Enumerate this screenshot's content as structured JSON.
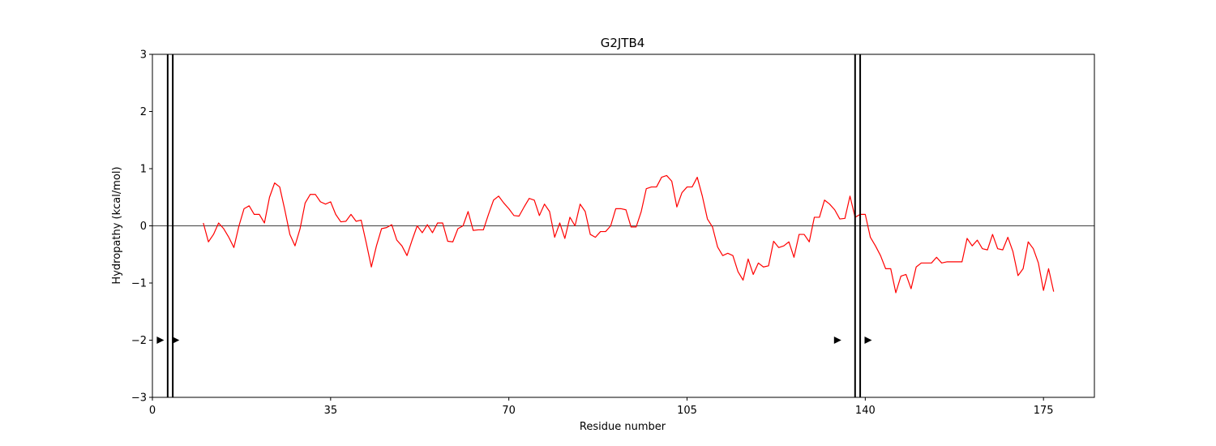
{
  "chart_data": {
    "type": "line",
    "title": "G2JTB4",
    "xlabel": "Residue number",
    "ylabel": "Hydropathy (kcal/mol)",
    "xlim": [
      0,
      185
    ],
    "ylim": [
      -3,
      3
    ],
    "xticks": [
      0,
      35,
      70,
      105,
      140,
      175
    ],
    "yticks": [
      -3,
      -2,
      -1,
      0,
      1,
      2,
      3
    ],
    "grid": false,
    "zero_line": 0,
    "series": [
      {
        "color": "#ff0000",
        "x_start": 10,
        "x_step": 1,
        "values": [
          0.05,
          -0.28,
          -0.15,
          0.05,
          -0.05,
          -0.2,
          -0.38,
          0.0,
          0.3,
          0.35,
          0.2,
          0.2,
          0.05,
          0.5,
          0.75,
          0.68,
          0.28,
          -0.15,
          -0.35,
          -0.05,
          0.4,
          0.55,
          0.55,
          0.42,
          0.38,
          0.42,
          0.2,
          0.07,
          0.08,
          0.2,
          0.08,
          0.1,
          -0.3,
          -0.72,
          -0.35,
          -0.05,
          -0.03,
          0.02,
          -0.25,
          -0.35,
          -0.52,
          -0.25,
          0.0,
          -0.12,
          0.02,
          -0.12,
          0.05,
          0.05,
          -0.27,
          -0.28,
          -0.05,
          0.0,
          0.25,
          -0.08,
          -0.07,
          -0.07,
          0.2,
          0.45,
          0.52,
          0.4,
          0.3,
          0.18,
          0.17,
          0.33,
          0.48,
          0.45,
          0.18,
          0.38,
          0.25,
          -0.2,
          0.05,
          -0.22,
          0.15,
          0.0,
          0.38,
          0.25,
          -0.15,
          -0.2,
          -0.1,
          -0.1,
          0.0,
          0.3,
          0.3,
          0.28,
          -0.02,
          -0.02,
          0.25,
          0.65,
          0.68,
          0.68,
          0.85,
          0.88,
          0.78,
          0.33,
          0.58,
          0.68,
          0.68,
          0.85,
          0.52,
          0.12,
          -0.02,
          -0.37,
          -0.52,
          -0.48,
          -0.52,
          -0.8,
          -0.95,
          -0.58,
          -0.85,
          -0.65,
          -0.72,
          -0.7,
          -0.27,
          -0.38,
          -0.35,
          -0.28,
          -0.55,
          -0.15,
          -0.15,
          -0.28,
          0.15,
          0.15,
          0.45,
          0.38,
          0.28,
          0.12,
          0.13,
          0.52,
          0.15,
          0.2,
          0.2,
          -0.2,
          -0.35,
          -0.52,
          -0.75,
          -0.75,
          -1.17,
          -0.88,
          -0.85,
          -1.1,
          -0.72,
          -0.65,
          -0.65,
          -0.65,
          -0.55,
          -0.65,
          -0.63,
          -0.63,
          -0.63,
          -0.63,
          -0.22,
          -0.35,
          -0.25,
          -0.4,
          -0.42,
          -0.15,
          -0.4,
          -0.42,
          -0.2,
          -0.45,
          -0.87,
          -0.75,
          -0.28,
          -0.4,
          -0.65,
          -1.13,
          -0.75,
          -1.15
        ]
      }
    ],
    "vertical_lines": [
      3,
      4,
      138,
      139
    ],
    "markers": [
      {
        "x": 1.5,
        "y": -2,
        "shape": "triangle-right"
      },
      {
        "x": 4.5,
        "y": -2,
        "shape": "triangle-right"
      },
      {
        "x": 134.5,
        "y": -2,
        "shape": "triangle-right"
      },
      {
        "x": 140.5,
        "y": -2,
        "shape": "triangle-right"
      }
    ]
  }
}
